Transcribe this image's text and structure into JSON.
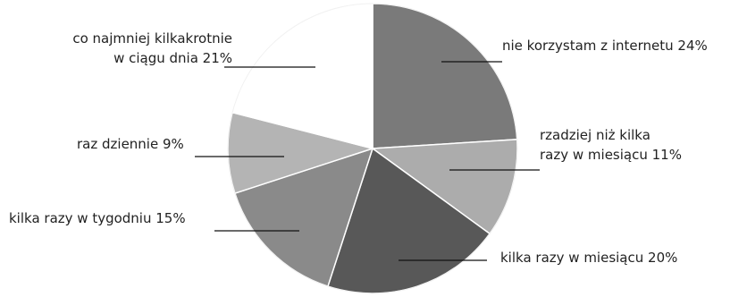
{
  "chart_data": {
    "type": "pie",
    "start_angle_deg": 0,
    "direction": "clockwise",
    "slices": [
      {
        "label_lines": [
          "nie korzystam z internetu 24%"
        ],
        "value": 24,
        "color": "#7a7a7a"
      },
      {
        "label_lines": [
          "rzadziej niż kilka",
          "razy w miesiącu 11%"
        ],
        "value": 11,
        "color": "#acacac"
      },
      {
        "label_lines": [
          "kilka razy w miesiącu 20%"
        ],
        "value": 20,
        "color": "#585858"
      },
      {
        "label_lines": [
          "kilka razy w tygodniu 15%"
        ],
        "value": 15,
        "color": "#8a8a8a"
      },
      {
        "label_lines": [
          "raz dziennie 9%"
        ],
        "value": 9,
        "color": "#b4b4b4"
      },
      {
        "label_lines": [
          "co najmniej kilkakrotnie",
          "w ciągu dnia 21%"
        ],
        "value": 21,
        "color": "#ffffff"
      }
    ]
  }
}
